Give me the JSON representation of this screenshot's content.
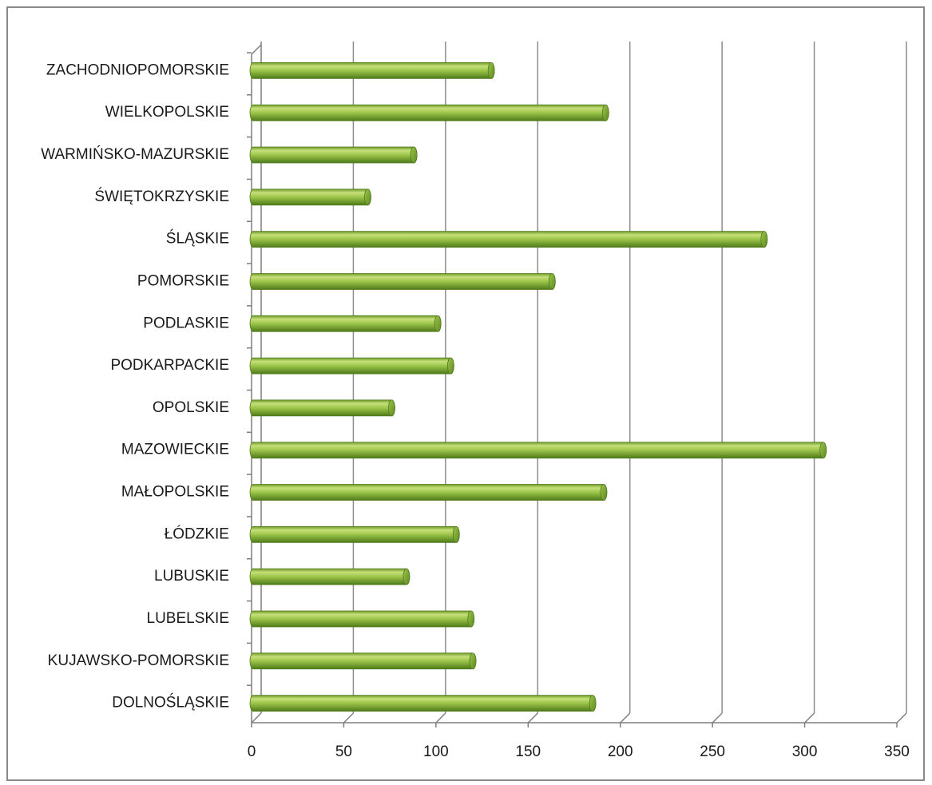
{
  "chart_data": {
    "type": "bar",
    "orientation": "horizontal",
    "style": "3d-cylinder",
    "title": "",
    "xlabel": "",
    "ylabel": "",
    "categories": [
      "ZACHODNIOPOMORSKIE",
      "WIELKOPOLSKIE",
      "WARMIŃSKO-MAZURSKIE",
      "ŚWIĘTOKRZYSKIE",
      "ŚLĄSKIE",
      "POMORSKIE",
      "PODLASKIE",
      "PODKARPACKIE",
      "OPOLSKIE",
      "MAZOWIECKIE",
      "MAŁOPOLSKIE",
      "ŁÓDZKIE",
      "LUBUSKIE",
      "LUBELSKIE",
      "KUJAWSKO-POMORSKIE",
      "DOLNOŚLĄSKIE"
    ],
    "values": [
      130,
      192,
      88,
      63,
      278,
      163,
      101,
      108,
      76,
      310,
      191,
      111,
      84,
      119,
      120,
      185
    ],
    "xlim": [
      0,
      350
    ],
    "xticks": [
      "0",
      "50",
      "100",
      "150",
      "200",
      "250",
      "300",
      "350"
    ],
    "grid": true,
    "legend": "none",
    "colors": {
      "bar_light": "#c6e07a",
      "bar_mid": "#8db83c",
      "bar_dark": "#4f7a1a",
      "bar_cap": "#6f9a2a",
      "gridline": "#8c8c8c",
      "axis": "#7f7f7f",
      "text": "#1a1a1a"
    }
  }
}
